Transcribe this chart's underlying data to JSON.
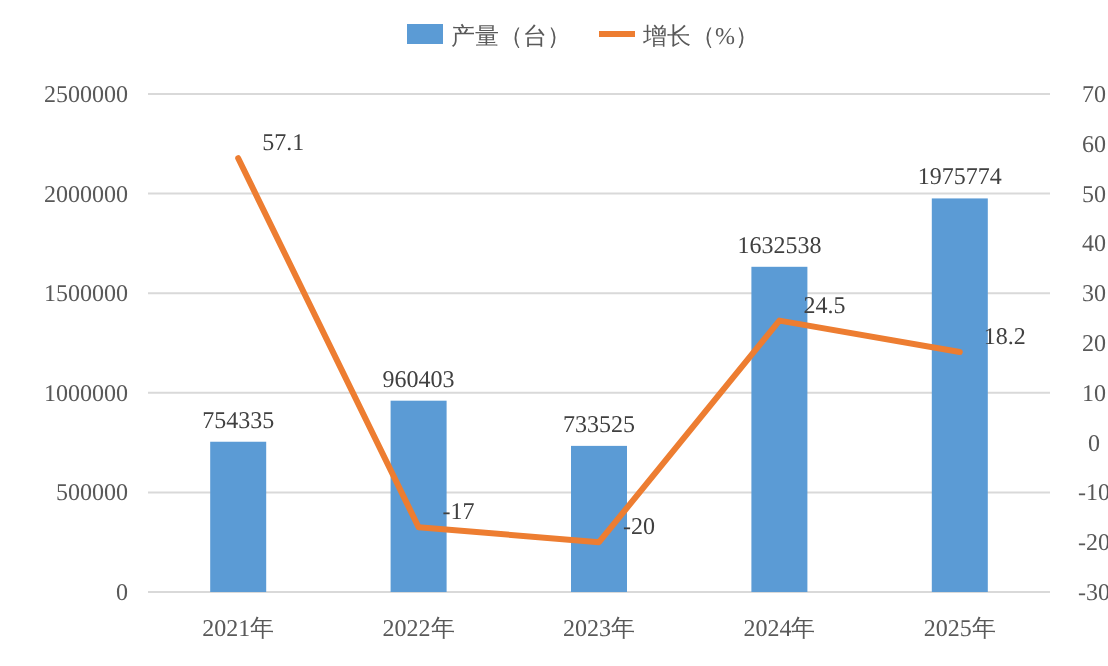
{
  "chart_data": {
    "type": "bar",
    "categories": [
      "2021年",
      "2022年",
      "2023年",
      "2024年",
      "2025年"
    ],
    "series": [
      {
        "name": "产量（台）",
        "color": "#5b9bd5",
        "values": [
          754335,
          960403,
          733525,
          1632538,
          1975774
        ]
      },
      {
        "name": "增长（%）",
        "type": "line",
        "axis": "y2",
        "color": "#ed7d31",
        "values": [
          57.1,
          -17,
          -20,
          24.5,
          18.2
        ]
      }
    ],
    "ylim": [
      0,
      2500000
    ],
    "yticks": [
      0,
      500000,
      1000000,
      1500000,
      2000000,
      2500000
    ],
    "y2lim": [
      -30,
      70
    ],
    "y2ticks": [
      -30,
      -20,
      -10,
      0,
      10,
      20,
      30,
      40,
      50,
      60,
      70
    ],
    "data_labels": true,
    "grid": "y",
    "legend": "top"
  }
}
